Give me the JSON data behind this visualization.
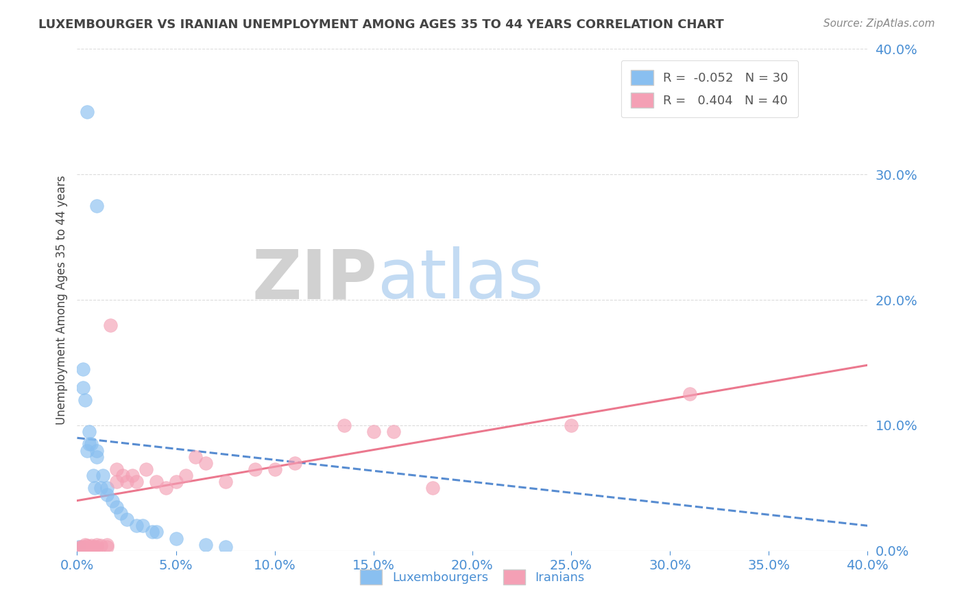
{
  "title": "LUXEMBOURGER VS IRANIAN UNEMPLOYMENT AMONG AGES 35 TO 44 YEARS CORRELATION CHART",
  "source": "Source: ZipAtlas.com",
  "xlim": [
    0,
    0.4
  ],
  "ylim": [
    0,
    0.4
  ],
  "x_ticks": [
    0.0,
    0.05,
    0.1,
    0.15,
    0.2,
    0.25,
    0.3,
    0.35,
    0.4
  ],
  "y_ticks": [
    0.0,
    0.1,
    0.2,
    0.3,
    0.4
  ],
  "legend_lux_R": "-0.052",
  "legend_lux_N": "30",
  "legend_iran_R": "0.404",
  "legend_iran_N": "40",
  "lux_color": "#89bff0",
  "iran_color": "#f4a0b5",
  "lux_line_color": "#3a78c9",
  "iran_line_color": "#e8607a",
  "title_color": "#444444",
  "axis_label_color": "#4a8fd4",
  "watermark_zip_color": "#c8c8c8",
  "watermark_atlas_color": "#a8c8ee",
  "background_color": "#ffffff",
  "grid_color": "#cccccc",
  "lux_points_x": [
    0.005,
    0.01,
    0.001,
    0.001,
    0.003,
    0.003,
    0.004,
    0.005,
    0.006,
    0.006,
    0.007,
    0.008,
    0.009,
    0.01,
    0.01,
    0.012,
    0.013,
    0.015,
    0.015,
    0.018,
    0.02,
    0.022,
    0.025,
    0.03,
    0.033,
    0.038,
    0.04,
    0.05,
    0.065,
    0.075
  ],
  "lux_points_y": [
    0.35,
    0.275,
    0.001,
    0.003,
    0.13,
    0.145,
    0.12,
    0.08,
    0.085,
    0.095,
    0.085,
    0.06,
    0.05,
    0.075,
    0.08,
    0.05,
    0.06,
    0.045,
    0.05,
    0.04,
    0.035,
    0.03,
    0.025,
    0.02,
    0.02,
    0.015,
    0.015,
    0.01,
    0.005,
    0.003
  ],
  "iran_points_x": [
    0.001,
    0.002,
    0.003,
    0.004,
    0.004,
    0.005,
    0.005,
    0.006,
    0.007,
    0.008,
    0.009,
    0.01,
    0.01,
    0.012,
    0.015,
    0.015,
    0.017,
    0.02,
    0.02,
    0.023,
    0.025,
    0.028,
    0.03,
    0.035,
    0.04,
    0.045,
    0.05,
    0.055,
    0.06,
    0.065,
    0.075,
    0.09,
    0.1,
    0.11,
    0.135,
    0.15,
    0.16,
    0.18,
    0.25,
    0.31
  ],
  "iran_points_y": [
    0.002,
    0.003,
    0.003,
    0.003,
    0.005,
    0.002,
    0.004,
    0.003,
    0.004,
    0.003,
    0.003,
    0.003,
    0.005,
    0.004,
    0.003,
    0.005,
    0.18,
    0.055,
    0.065,
    0.06,
    0.055,
    0.06,
    0.055,
    0.065,
    0.055,
    0.05,
    0.055,
    0.06,
    0.075,
    0.07,
    0.055,
    0.065,
    0.065,
    0.07,
    0.1,
    0.095,
    0.095,
    0.05,
    0.1,
    0.125
  ],
  "lux_trend_x": [
    0.0,
    0.4
  ],
  "lux_trend_y_start": 0.09,
  "lux_trend_y_end": 0.02,
  "iran_trend_x": [
    0.0,
    0.4
  ],
  "iran_trend_y_start": 0.04,
  "iran_trend_y_end": 0.148
}
